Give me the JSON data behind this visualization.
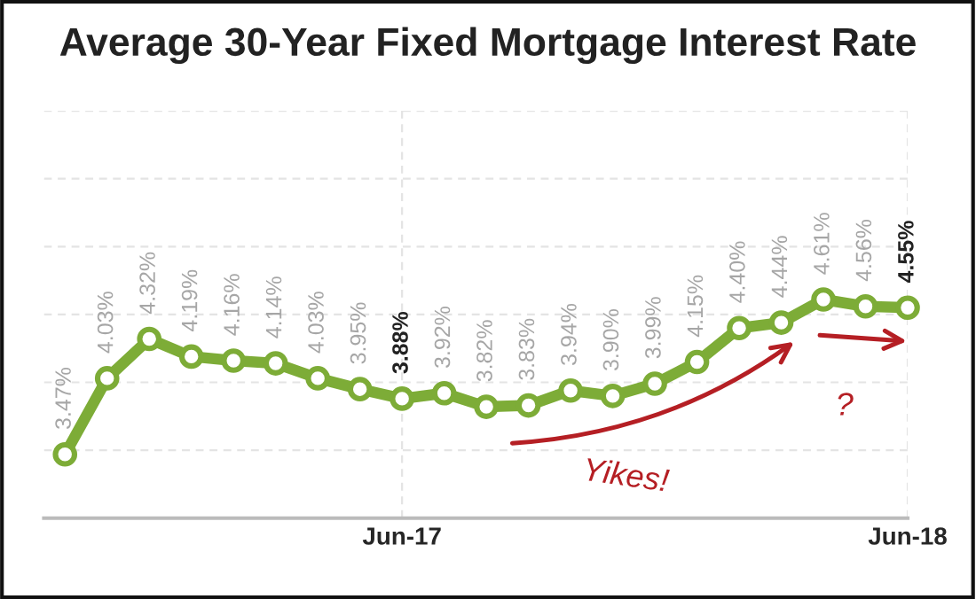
{
  "chart_data": {
    "type": "line",
    "title": "Average 30-Year Fixed Mortgage Interest Rate",
    "categories": [
      null,
      null,
      null,
      null,
      null,
      null,
      null,
      null,
      "Jun-17",
      null,
      null,
      null,
      null,
      null,
      null,
      null,
      null,
      null,
      null,
      null,
      "Jun-18"
    ],
    "series": [
      {
        "color": "#7dac37",
        "values": [
          3.47,
          4.03,
          4.32,
          4.19,
          4.16,
          4.14,
          4.03,
          3.95,
          3.88,
          3.92,
          3.82,
          3.83,
          3.94,
          3.9,
          3.99,
          4.15,
          4.4,
          4.44,
          4.61,
          4.56,
          4.55
        ],
        "value_labels": [
          "3.47%",
          "4.03%",
          "4.32%",
          "4.19%",
          "4.16%",
          "4.14%",
          "4.03%",
          "3.95%",
          "3.88%",
          "3.92%",
          "3.82%",
          "3.83%",
          "3.94%",
          "3.90%",
          "3.99%",
          "4.15%",
          "4.40%",
          "4.44%",
          "4.61%",
          "4.56%",
          "4.55%"
        ]
      }
    ],
    "ylim": [
      3,
      6
    ],
    "yticks": [
      {
        "value": 3.5,
        "label": null
      },
      {
        "value": 4,
        "label": null
      },
      {
        "value": 4.5,
        "label": null
      },
      {
        "value": 5,
        "label": null
      },
      {
        "value": 5.5,
        "label": null
      },
      {
        "value": 6,
        "label": null
      }
    ],
    "grid": true,
    "marker": "circle",
    "line_style": "solid",
    "legend": false,
    "annotations": [
      "Yikes!",
      "?"
    ]
  }
}
